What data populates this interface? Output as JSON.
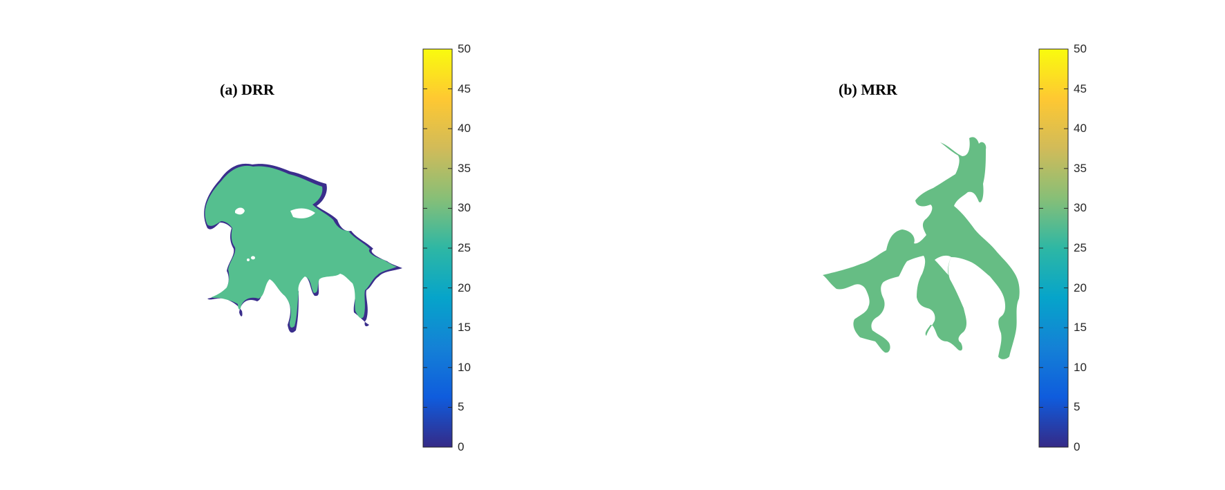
{
  "colorbar": {
    "min": 0,
    "max": 50,
    "ticks": [
      "0",
      "5",
      "10",
      "15",
      "20",
      "25",
      "30",
      "35",
      "40",
      "45",
      "50"
    ],
    "colormap": "parula",
    "stops": [
      "#352a87",
      "#0f5cdd",
      "#1481d6",
      "#06a4ca",
      "#2eb7a4",
      "#87bf77",
      "#d1bb59",
      "#fec832",
      "#f9fb0e"
    ]
  },
  "chart_data": [
    {
      "type": "heatmap",
      "title": "(a) DRR",
      "colorbar_range": [
        0,
        50
      ],
      "dominant_value": 28,
      "edge_value": 1,
      "fill_color": "#55bf8f",
      "edge_color": "#3a2e8c"
    },
    {
      "type": "heatmap",
      "title": "(b) MRR",
      "colorbar_range": [
        0,
        50
      ],
      "dominant_value": 29,
      "fill_color": "#66bd84"
    }
  ]
}
